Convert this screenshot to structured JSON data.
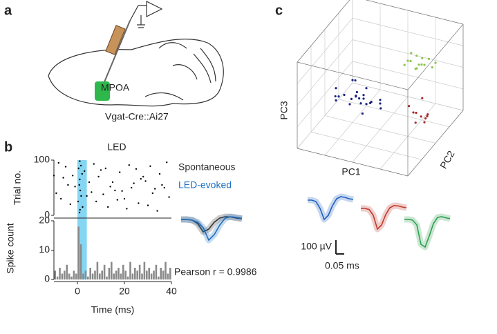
{
  "panel_labels": [
    "a",
    "b",
    "c"
  ],
  "diagram": {
    "region": "MPOA",
    "genotype": "Vgat-Cre::Ai27"
  },
  "chart_data": [
    {
      "type": "raster",
      "title": "LED",
      "ylabel": "Trial no.",
      "color": "#000000",
      "highlight": [
        0,
        4
      ],
      "highlight_color": "#5bc8ef",
      "xlim": [
        -10,
        40
      ],
      "ylim": [
        0,
        100
      ],
      "yticks": [
        0,
        100
      ],
      "x": [
        -8,
        -5,
        -2,
        3,
        7,
        12,
        18,
        22,
        27,
        31,
        35,
        38,
        -9,
        -4,
        1,
        1.5,
        0.5,
        2,
        1,
        0.8,
        1.2,
        1.6,
        0.3,
        2.2,
        1.1,
        0.9,
        5,
        9,
        14,
        19,
        24,
        29,
        33,
        37,
        -7,
        -3,
        4,
        8,
        13,
        17,
        21,
        26,
        30,
        34,
        39,
        -6,
        -1,
        6,
        11,
        16,
        23,
        28,
        32,
        36,
        -10,
        10,
        15,
        20,
        25
      ],
      "y": [
        95,
        88,
        72,
        80,
        93,
        85,
        78,
        91,
        66,
        89,
        75,
        96,
        40,
        55,
        98,
        90,
        85,
        75,
        65,
        55,
        45,
        35,
        25,
        15,
        10,
        5,
        60,
        70,
        52,
        44,
        58,
        62,
        48,
        50,
        30,
        20,
        35,
        25,
        15,
        28,
        12,
        22,
        18,
        8,
        33,
        68,
        52,
        42,
        38,
        45,
        50,
        70,
        40,
        55,
        72,
        82,
        60,
        30,
        84
      ]
    },
    {
      "type": "histogram",
      "xlabel": "Time (ms)",
      "ylabel": "Spike count",
      "color": "#8a8a8a",
      "xlim": [
        -10,
        40
      ],
      "ylim": [
        0,
        20
      ],
      "xticks": [
        0,
        20,
        40
      ],
      "yticks": [
        0,
        10,
        20
      ],
      "bins": [
        -10,
        -9,
        -8,
        -7,
        -6,
        -5,
        -4,
        -3,
        -2,
        -1,
        0,
        1,
        2,
        3,
        4,
        5,
        6,
        7,
        8,
        9,
        10,
        11,
        12,
        13,
        14,
        15,
        16,
        17,
        18,
        19,
        20,
        21,
        22,
        23,
        24,
        25,
        26,
        27,
        28,
        29,
        30,
        31,
        32,
        33,
        34,
        35,
        36,
        37,
        38,
        39,
        40
      ],
      "values": [
        3,
        1,
        4,
        2,
        3,
        5,
        2,
        1,
        3,
        2,
        18,
        12,
        2,
        3,
        1,
        4,
        2,
        3,
        6,
        2,
        3,
        5,
        1,
        4,
        6,
        2,
        3,
        4,
        2,
        5,
        3,
        1,
        6,
        2,
        4,
        3,
        5,
        2,
        6,
        3,
        4,
        2,
        3,
        5,
        1,
        4,
        3,
        6,
        2,
        4
      ]
    },
    {
      "type": "waveform",
      "annotation": "Pearson r = 0.9986",
      "series": [
        {
          "name": "Spontaneous",
          "color": "#333333",
          "values": [
            0,
            0,
            -5,
            -30,
            -90,
            -70,
            -20,
            10,
            20,
            18,
            10,
            5
          ]
        },
        {
          "name": "LED-evoked",
          "color": "#1f6fbf",
          "values": [
            0,
            0,
            -5,
            -20,
            -60,
            -150,
            -110,
            -40,
            10,
            20,
            15,
            8
          ]
        }
      ]
    },
    {
      "type": "scatter3d",
      "xlabel": "PC1",
      "ylabel": "PC2",
      "zlabel": "PC3",
      "xlim": [
        0,
        1
      ],
      "ylim": [
        0,
        1
      ],
      "zlim": [
        0,
        1
      ],
      "series": [
        {
          "color": "#1a237e",
          "x": [
            0.1,
            0.15,
            0.2,
            0.25,
            0.3,
            0.35,
            0.4,
            0.45,
            0.5,
            0.2,
            0.3,
            0.4,
            0.25,
            0.35,
            0.15,
            0.45,
            0.3,
            0.22,
            0.38,
            0.28,
            0.32,
            0.12,
            0.48,
            0.3
          ],
          "y": [
            0.5,
            0.4,
            0.6,
            0.45,
            0.55,
            0.5,
            0.45,
            0.6,
            0.5,
            0.35,
            0.65,
            0.4,
            0.55,
            0.48,
            0.55,
            0.42,
            0.38,
            0.62,
            0.58,
            0.5,
            0.44,
            0.45,
            0.55,
            0.52
          ],
          "z": [
            0.35,
            0.3,
            0.4,
            0.25,
            0.2,
            0.35,
            0.3,
            0.25,
            0.3,
            0.4,
            0.3,
            0.4,
            0.45,
            0.15,
            0.25,
            0.35,
            0.38,
            0.2,
            0.22,
            0.32,
            0.42,
            0.3,
            0.2,
            0.28
          ]
        },
        {
          "color": "#8bc34a",
          "x": [
            0.6,
            0.65,
            0.7,
            0.75,
            0.8,
            0.68,
            0.72,
            0.62,
            0.78,
            0.7,
            0.66,
            0.74,
            0.82,
            0.58
          ],
          "y": [
            0.8,
            0.75,
            0.85,
            0.8,
            0.78,
            0.9,
            0.7,
            0.82,
            0.88,
            0.76,
            0.84,
            0.72,
            0.86,
            0.78
          ],
          "z": [
            0.6,
            0.65,
            0.55,
            0.6,
            0.7,
            0.58,
            0.62,
            0.68,
            0.52,
            0.72,
            0.5,
            0.66,
            0.6,
            0.56
          ]
        },
        {
          "color": "#a52a2a",
          "x": [
            0.75,
            0.8,
            0.85,
            0.78,
            0.82,
            0.88,
            0.72,
            0.84,
            0.79,
            0.9
          ],
          "y": [
            0.6,
            0.55,
            0.65,
            0.7,
            0.5,
            0.6,
            0.58,
            0.62,
            0.66,
            0.52
          ],
          "z": [
            0.2,
            0.25,
            0.15,
            0.3,
            0.18,
            0.22,
            0.28,
            0.1,
            0.12,
            0.24
          ]
        }
      ]
    },
    {
      "type": "waveform",
      "scalebar": {
        "y": 100,
        "y_label": "100 µV",
        "x": 0.05,
        "x_label": "0.05 ms"
      },
      "series": [
        {
          "color": "#1f5fbf",
          "values": [
            0,
            0,
            -10,
            -60,
            -140,
            -110,
            -40,
            10,
            25,
            20,
            10,
            5
          ]
        },
        {
          "color": "#c0392b",
          "values": [
            0,
            0,
            -8,
            -50,
            -150,
            -120,
            -45,
            5,
            20,
            18,
            10,
            5
          ]
        },
        {
          "color": "#2e9e4f",
          "values": [
            0,
            0,
            -5,
            -40,
            -180,
            -200,
            -120,
            -30,
            15,
            20,
            12,
            6
          ]
        }
      ]
    }
  ]
}
